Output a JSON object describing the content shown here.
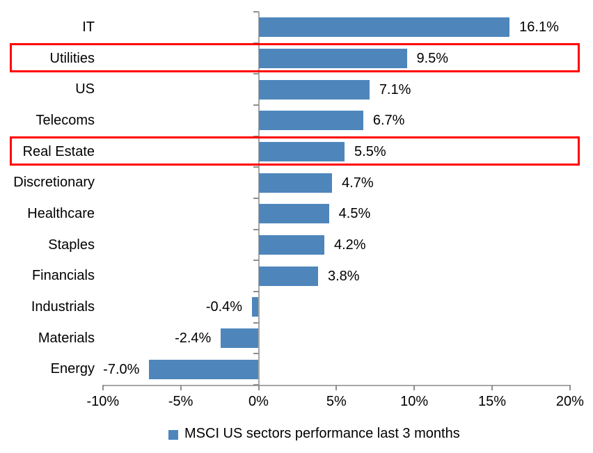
{
  "chart_data": {
    "type": "bar",
    "orientation": "horizontal",
    "categories": [
      "IT",
      "Utilities",
      "US",
      "Telecoms",
      "Real Estate",
      "Discretionary",
      "Healthcare",
      "Staples",
      "Financials",
      "Industrials",
      "Materials",
      "Energy"
    ],
    "values": [
      16.1,
      9.5,
      7.1,
      6.7,
      5.5,
      4.7,
      4.5,
      4.2,
      3.8,
      -0.4,
      -2.4,
      -7.0
    ],
    "data_labels": [
      "16.1%",
      "9.5%",
      "7.1%",
      "6.7%",
      "5.5%",
      "4.7%",
      "4.5%",
      "4.2%",
      "3.8%",
      "-0.4%",
      "-2.4%",
      "-7.0%"
    ],
    "x_ticks": [
      -10,
      -5,
      0,
      5,
      10,
      15,
      20
    ],
    "x_tick_labels": [
      "-10%",
      "-5%",
      "0%",
      "5%",
      "10%",
      "15%",
      "20%"
    ],
    "x_range": [
      -10,
      20
    ],
    "grid": false,
    "legend": "MSCI US sectors performance last 3 months",
    "legend_position": "bottom",
    "bar_color": "#4e86bc",
    "axis_color": "#a6a6a6",
    "highlight_color": "#ff0000",
    "highlighted_categories": [
      "Utilities",
      "Real Estate"
    ]
  }
}
